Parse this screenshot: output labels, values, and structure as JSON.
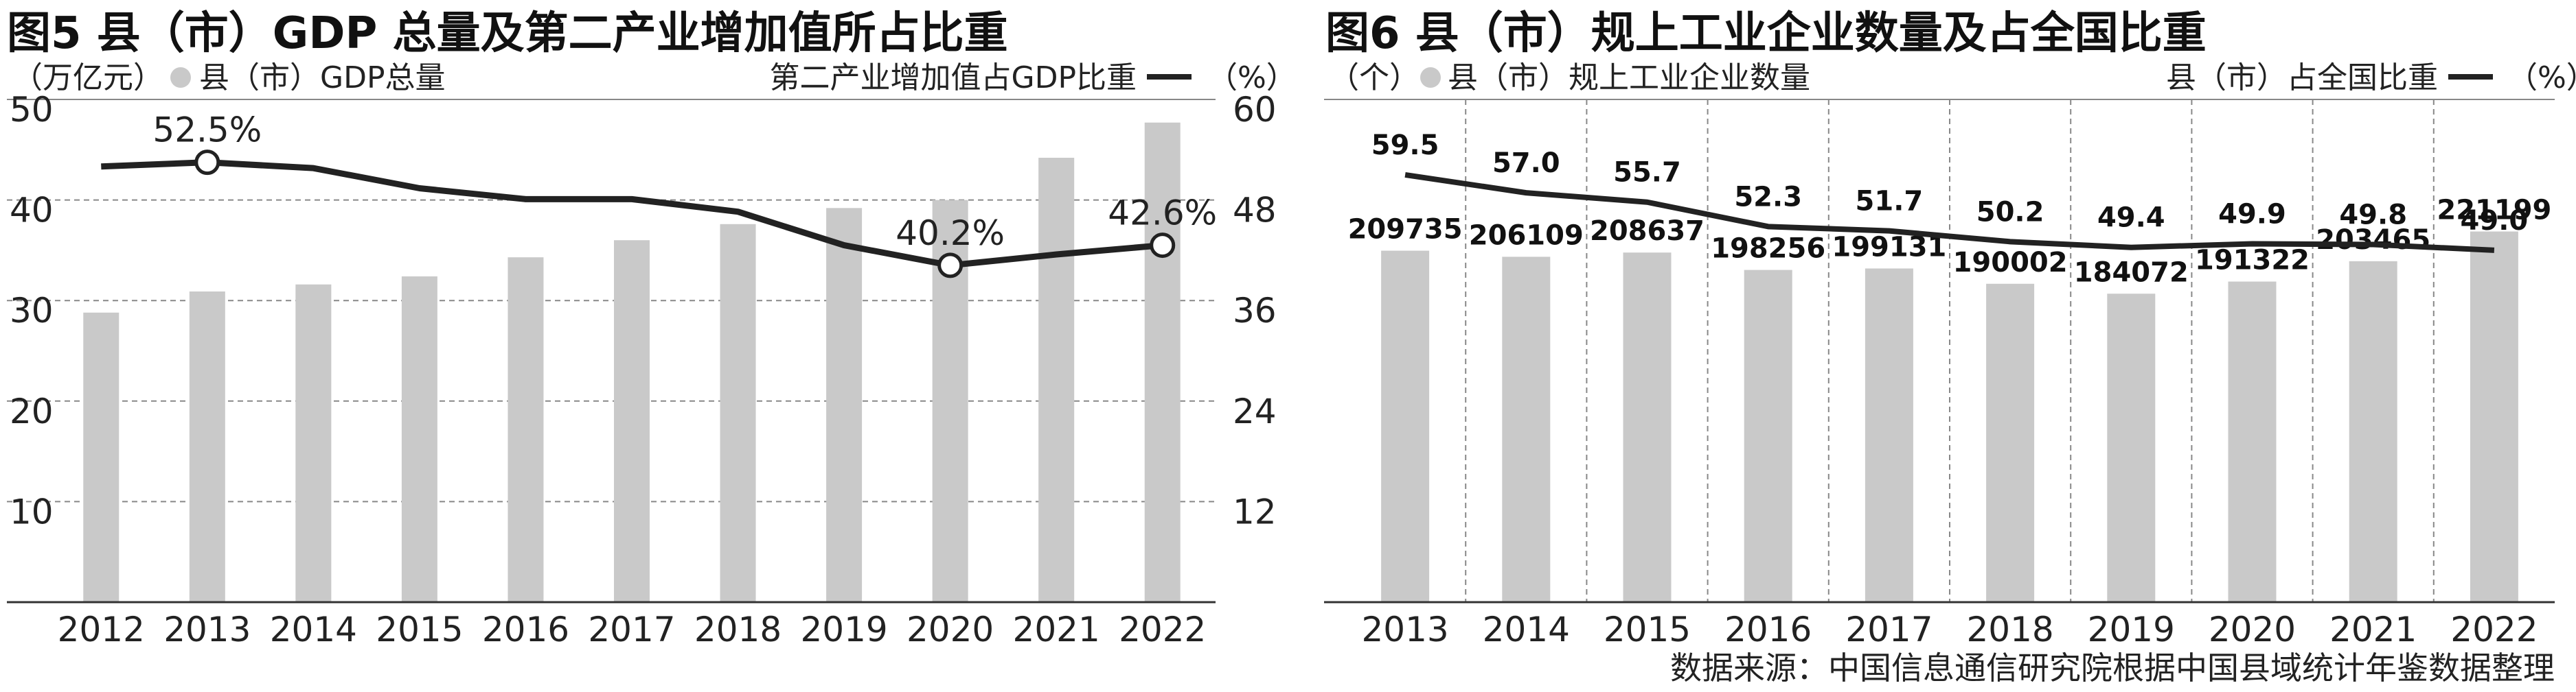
{
  "chart_data": [
    {
      "type": "bar",
      "title": "图5 县（市）GDP 总量及第二产业增加值所占比重",
      "left_axis_label": "（万亿元）",
      "right_axis_label": "第二产业增加值占GDP比重",
      "right_unit": "（%）",
      "legend_bar": "县（市）GDP总量",
      "categories": [
        "2012",
        "2013",
        "2014",
        "2015",
        "2016",
        "2017",
        "2018",
        "2019",
        "2020",
        "2021",
        "2022"
      ],
      "series": [
        {
          "name": "县（市）GDP总量",
          "axis": "left",
          "type": "bar",
          "values": [
            28.8,
            30.9,
            31.6,
            32.4,
            34.3,
            36.0,
            37.6,
            39.2,
            40.0,
            44.2,
            47.7
          ]
        },
        {
          "name": "第二产业增加值占GDP比重",
          "axis": "right",
          "type": "line",
          "values": [
            52.0,
            52.5,
            51.8,
            49.4,
            48.1,
            48.1,
            46.6,
            42.6,
            40.2,
            41.5,
            42.6
          ]
        }
      ],
      "labeled_points": [
        {
          "category": "2013",
          "label": "52.5%"
        },
        {
          "category": "2020",
          "label": "40.2%"
        },
        {
          "category": "2022",
          "label": "42.6%"
        }
      ],
      "ylim_left": [
        0,
        50
      ],
      "yticks_left": [
        "10",
        "20",
        "30",
        "40",
        "50"
      ],
      "ylim_right": [
        0,
        60
      ],
      "yticks_right": [
        "12",
        "24",
        "36",
        "48",
        "60"
      ],
      "grid": true,
      "legend_position": "top"
    },
    {
      "type": "bar",
      "title": "图6 县（市）规上工业企业数量及占全国比重",
      "left_axis_label": "（个）",
      "right_axis_label": "县（市）占全国比重",
      "right_unit": "（%）",
      "legend_bar": "县（市）规上工业企业数量",
      "categories": [
        "2013",
        "2014",
        "2015",
        "2016",
        "2017",
        "2018",
        "2019",
        "2020",
        "2021",
        "2022"
      ],
      "series": [
        {
          "name": "县（市）规上工业企业数量",
          "axis": "left",
          "type": "bar",
          "values": [
            209735,
            206109,
            208637,
            198256,
            199131,
            190002,
            184072,
            191322,
            203465,
            221199
          ],
          "labels": [
            "209735",
            "206109",
            "208637",
            "198256",
            "199131",
            "190002",
            "184072",
            "191322",
            "203465",
            "221199"
          ]
        },
        {
          "name": "县（市）占全国比重",
          "axis": "right",
          "type": "line",
          "values": [
            59.5,
            57.0,
            55.7,
            52.3,
            51.7,
            50.2,
            49.4,
            49.9,
            49.8,
            49.0
          ],
          "labels": [
            "59.5",
            "57.0",
            "55.7",
            "52.3",
            "51.7",
            "50.2",
            "49.4",
            "49.9",
            "49.8",
            "49.0"
          ]
        }
      ],
      "grid": true,
      "legend_position": "top"
    }
  ],
  "source": "数据来源：中国信息通信研究院根据中国县域统计年鉴数据整理",
  "colors": {
    "bar": "#c9c9c9",
    "line": "#222222",
    "grid": "#888888",
    "marker": "#ffffff",
    "axis": "#333333"
  }
}
